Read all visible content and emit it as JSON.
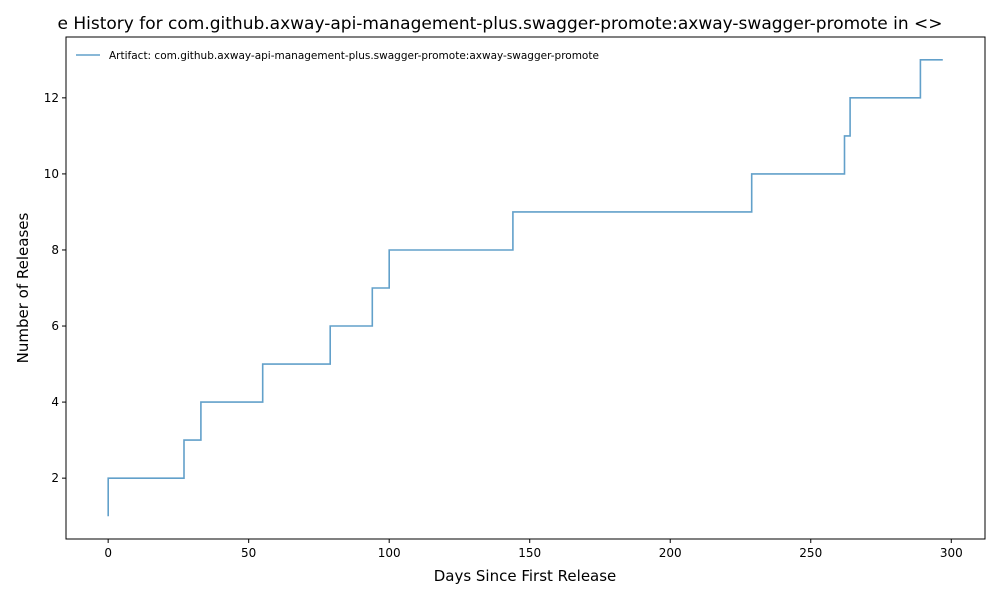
{
  "chart_data": {
    "type": "line",
    "title": "e History for com.github.axway-api-management-plus.swagger-promote:axway-swagger-promote in <>",
    "xlabel": "Days Since First Release",
    "ylabel": "Number of Releases",
    "xlim": [
      -15,
      312
    ],
    "ylim": [
      0.4,
      13.6
    ],
    "xticks": [
      0,
      50,
      100,
      150,
      200,
      250,
      300
    ],
    "yticks": [
      2,
      4,
      6,
      8,
      10,
      12
    ],
    "grid": false,
    "legend_position": "upper-left",
    "series": [
      {
        "name": "Artifact: com.github.axway-api-management-plus.swagger-promote:axway-swagger-promote",
        "color": "#1f77b4",
        "step": "post",
        "x": [
          0,
          0,
          27,
          33,
          55,
          79,
          94,
          100,
          144,
          229,
          262,
          264,
          289,
          297
        ],
        "y": [
          1,
          2,
          3,
          4,
          5,
          6,
          7,
          8,
          9,
          10,
          11,
          12,
          13,
          13
        ]
      }
    ]
  }
}
